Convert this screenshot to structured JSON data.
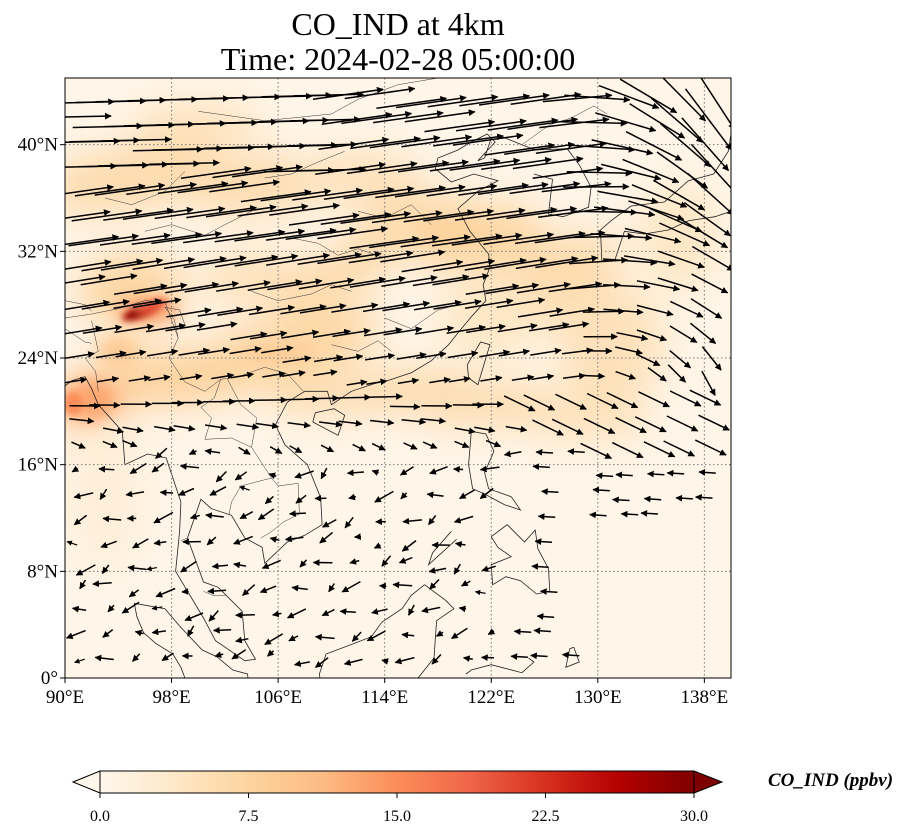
{
  "title": {
    "line1": "CO_IND at 4km",
    "line2": "Time: 2024-02-28 05:00:00"
  },
  "map": {
    "projection": "PlateCarree",
    "lon_range": [
      90,
      140
    ],
    "lat_range": [
      0,
      45
    ],
    "x_ticks": [
      {
        "value": 90,
        "label": "90°E"
      },
      {
        "value": 98,
        "label": "98°E"
      },
      {
        "value": 106,
        "label": "106°E"
      },
      {
        "value": 114,
        "label": "114°E"
      },
      {
        "value": 122,
        "label": "122°E"
      },
      {
        "value": 130,
        "label": "130°E"
      },
      {
        "value": 138,
        "label": "138°E"
      }
    ],
    "y_ticks": [
      {
        "value": 0,
        "label": "0°"
      },
      {
        "value": 8,
        "label": "8°N"
      },
      {
        "value": 16,
        "label": "16°N"
      },
      {
        "value": 24,
        "label": "24°N"
      },
      {
        "value": 32,
        "label": "32°N"
      },
      {
        "value": 40,
        "label": "40°N"
      }
    ],
    "gridlines": true,
    "gridline_style": "dotted",
    "coastlines": true,
    "field_features": [
      {
        "name": "sichuan-hotspot",
        "lon": 95.5,
        "lat": 27.5,
        "value": 28
      },
      {
        "name": "northwest-plume",
        "lon": 94,
        "lat": 36,
        "value": 8
      },
      {
        "name": "indochina-plume",
        "lon": 92,
        "lat": 20.5,
        "value": 11
      },
      {
        "name": "south-china-band",
        "lon": 108,
        "lat": 24,
        "value": 8
      },
      {
        "name": "east-china-band",
        "lon": 120,
        "lat": 33,
        "value": 8
      },
      {
        "name": "pacific-outflow",
        "lon": 132,
        "lat": 26,
        "value": 5
      }
    ],
    "wind_vectors": true
  },
  "colorbar": {
    "label": "CO_IND (ppbv)",
    "cmap": "OrRd",
    "min": 0.0,
    "max": 30.0,
    "extend": "both",
    "tick_labels": [
      "0.0",
      "7.5",
      "15.0",
      "22.5",
      "30.0"
    ],
    "tick_values": [
      0,
      7.5,
      15,
      22.5,
      30
    ],
    "colors": [
      "#fff7ec",
      "#fee8c8",
      "#fdd49e",
      "#fdbb84",
      "#fc8d59",
      "#ef6548",
      "#d7301f",
      "#b30000",
      "#7f0000"
    ]
  }
}
